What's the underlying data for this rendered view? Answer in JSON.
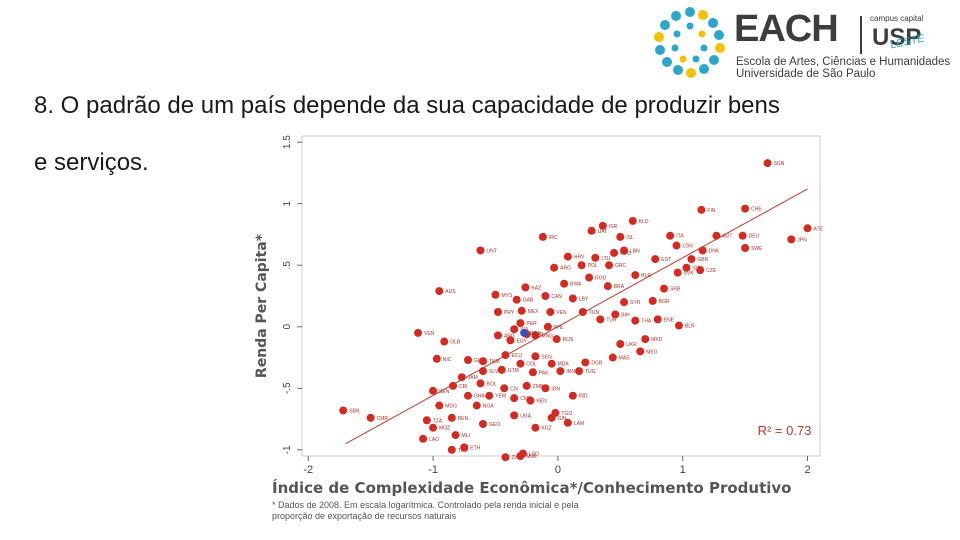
{
  "logo": {
    "title": "EACH",
    "usp_small": "campus capital",
    "usp": "USP",
    "leste": "LESTE",
    "line1": "Escola de Artes, Ciências e Humanidades",
    "line2": "Universidade de São Paulo"
  },
  "slide": {
    "text_line1": "8. O padrão de um país depende da sua capacidade de produzir bens",
    "text_line2": "e serviços."
  },
  "colors": {
    "points": "#d42a20",
    "highlight": "#3a4fc0",
    "fit": "#c0392b",
    "r2": "#c0392b"
  },
  "chart_data": {
    "type": "scatter",
    "xlabel": "Índice de Complexidade Econômica*/Conhecimento Produtivo",
    "ylabel": "Renda Per Capita*",
    "xlim": [
      -2.05,
      2.1
    ],
    "ylim": [
      -1.05,
      1.55
    ],
    "xticks": [
      "-2",
      "-1",
      "0",
      "1",
      "2"
    ],
    "yticks": [
      "-1",
      "-.5",
      "0",
      ".5",
      "1",
      "1.5"
    ],
    "annotation": "R² = 0.73",
    "footnote1": "* Dados de 2008. Em escala logarítmica. Controlado pela renda inicial e pela",
    "footnote2": "proporção de exportação de recursos naturais",
    "fit_line": [
      [
        -1.7,
        -0.95
      ],
      [
        2.0,
        1.12
      ]
    ],
    "points": [
      [
        1.68,
        1.33,
        "SGN"
      ],
      [
        1.15,
        0.95,
        "FIN"
      ],
      [
        1.5,
        0.96,
        "CHE"
      ],
      [
        0.6,
        0.86,
        "KLD"
      ],
      [
        0.36,
        0.82,
        "ISR"
      ],
      [
        0.27,
        0.78,
        "UAT"
      ],
      [
        -0.12,
        0.73,
        "IRC"
      ],
      [
        0.5,
        0.73,
        "ISL"
      ],
      [
        0.9,
        0.74,
        "ITA"
      ],
      [
        1.27,
        0.74,
        "AUT"
      ],
      [
        1.48,
        0.74,
        "DEU"
      ],
      [
        2.0,
        0.8,
        "ATE"
      ],
      [
        1.87,
        0.71,
        "JPN"
      ],
      [
        -0.62,
        0.62,
        "UNT"
      ],
      [
        0.53,
        0.62,
        "LBN"
      ],
      [
        0.95,
        0.66,
        "LGN"
      ],
      [
        1.5,
        0.64,
        "SWE"
      ],
      [
        1.16,
        0.62,
        "DNK"
      ],
      [
        0.08,
        0.57,
        "HRV"
      ],
      [
        0.3,
        0.56,
        "LTU"
      ],
      [
        0.78,
        0.55,
        "EST"
      ],
      [
        1.07,
        0.55,
        "GBR"
      ],
      [
        -0.03,
        0.48,
        "ARG"
      ],
      [
        0.19,
        0.5,
        "POL"
      ],
      [
        0.41,
        0.5,
        "GRC"
      ],
      [
        1.03,
        0.48,
        "SVN"
      ],
      [
        1.14,
        0.46,
        "CZE"
      ],
      [
        0.62,
        0.42,
        "BLR"
      ],
      [
        0.96,
        0.44,
        "SVK"
      ],
      [
        -0.95,
        0.29,
        "AUS"
      ],
      [
        -0.5,
        0.26,
        "MYS"
      ],
      [
        -0.26,
        0.32,
        "KAZ"
      ],
      [
        0.05,
        0.35,
        "BWA"
      ],
      [
        0.25,
        0.4,
        "ROU"
      ],
      [
        0.4,
        0.33,
        "BRA"
      ],
      [
        0.85,
        0.31,
        "SRB"
      ],
      [
        -0.33,
        0.22,
        "GAB"
      ],
      [
        -0.1,
        0.25,
        "CAN"
      ],
      [
        0.12,
        0.23,
        "LBY"
      ],
      [
        0.53,
        0.2,
        "SYR"
      ],
      [
        0.76,
        0.21,
        "BGR"
      ],
      [
        -0.48,
        0.12,
        "PRY"
      ],
      [
        -0.29,
        0.13,
        "MEX"
      ],
      [
        -0.06,
        0.12,
        "VEN"
      ],
      [
        0.2,
        0.12,
        "TUN"
      ],
      [
        0.46,
        0.1,
        "BIH"
      ],
      [
        0.8,
        0.06,
        "ENE"
      ],
      [
        -0.3,
        0.03,
        "PER"
      ],
      [
        -0.08,
        0.0,
        "PHL"
      ],
      [
        0.34,
        0.06,
        "TUR"
      ],
      [
        0.62,
        0.05,
        "THA"
      ],
      [
        0.97,
        0.01,
        "BLR"
      ],
      [
        -1.12,
        -0.05,
        "VEN"
      ],
      [
        -0.91,
        -0.12,
        "OLB"
      ],
      [
        -0.48,
        -0.07,
        "ARG"
      ],
      [
        -0.38,
        -0.11,
        "EGY"
      ],
      [
        -0.18,
        -0.07,
        "MNG"
      ],
      [
        -0.35,
        -0.02,
        "ISA"
      ],
      [
        -0.25,
        -0.06,
        "HND"
      ],
      [
        -0.01,
        -0.1,
        "RUS"
      ],
      [
        0.5,
        -0.14,
        "UKR"
      ],
      [
        0.7,
        -0.1,
        "MKD"
      ],
      [
        0.66,
        -0.2,
        "MEG"
      ],
      [
        -0.97,
        -0.26,
        "NIC"
      ],
      [
        -0.72,
        -0.27,
        "GLA"
      ],
      [
        -0.6,
        -0.28,
        "TKM"
      ],
      [
        -0.42,
        -0.23,
        "ECU"
      ],
      [
        -0.3,
        -0.3,
        "COL"
      ],
      [
        -0.18,
        -0.24,
        "SEN"
      ],
      [
        -0.05,
        -0.3,
        "MDA"
      ],
      [
        0.22,
        -0.29,
        "DGR"
      ],
      [
        0.44,
        -0.25,
        "MAS"
      ],
      [
        -0.77,
        -0.41,
        "JAM"
      ],
      [
        -0.6,
        -0.36,
        "SLV"
      ],
      [
        -0.45,
        -0.35,
        "GTM"
      ],
      [
        -0.2,
        -0.37,
        "PAK"
      ],
      [
        0.02,
        -0.36,
        "IRN"
      ],
      [
        0.17,
        -0.36,
        "TUG"
      ],
      [
        -0.84,
        -0.48,
        "CBI"
      ],
      [
        -0.62,
        -0.46,
        "BOL"
      ],
      [
        -0.43,
        -0.5,
        "CIV"
      ],
      [
        -0.25,
        -0.48,
        "ZMB"
      ],
      [
        -0.1,
        -0.5,
        "IDN"
      ],
      [
        -1.0,
        -0.52,
        "SEN"
      ],
      [
        -0.72,
        -0.56,
        "GHA"
      ],
      [
        -0.55,
        -0.56,
        "YEM"
      ],
      [
        -0.35,
        -0.58,
        "CMR"
      ],
      [
        -0.22,
        -0.6,
        "KEN"
      ],
      [
        0.12,
        -0.56,
        "IND"
      ],
      [
        -1.72,
        -0.68,
        "SBN"
      ],
      [
        -1.5,
        -0.74,
        "CMR"
      ],
      [
        -0.95,
        -0.64,
        "MDG"
      ],
      [
        -0.65,
        -0.64,
        "NGA"
      ],
      [
        -0.35,
        -0.72,
        "UGA"
      ],
      [
        -0.05,
        -0.74,
        "GIN"
      ],
      [
        -1.05,
        -0.76,
        "TZA"
      ],
      [
        -0.85,
        -0.74,
        "BEN"
      ],
      [
        -0.6,
        -0.79,
        "GEO"
      ],
      [
        -0.18,
        -0.82,
        "KGZ"
      ],
      [
        0.08,
        -0.78,
        "LAM"
      ],
      [
        -1.0,
        -0.82,
        "MOZ"
      ],
      [
        -0.82,
        -0.88,
        "MLI"
      ],
      [
        -1.08,
        -0.91,
        "LAO"
      ],
      [
        -0.85,
        -1.0,
        "TCD"
      ],
      [
        -0.75,
        -0.98,
        "ETH"
      ],
      [
        -0.28,
        -1.03,
        "LSO"
      ],
      [
        -0.42,
        -1.06,
        "ZWE"
      ],
      [
        -0.3,
        -1.05,
        "MWI"
      ],
      [
        -0.02,
        -0.7,
        "TGO"
      ],
      [
        0.45,
        0.6,
        "GEO"
      ]
    ],
    "highlight": [
      -0.27,
      -0.05,
      "BRA"
    ]
  }
}
